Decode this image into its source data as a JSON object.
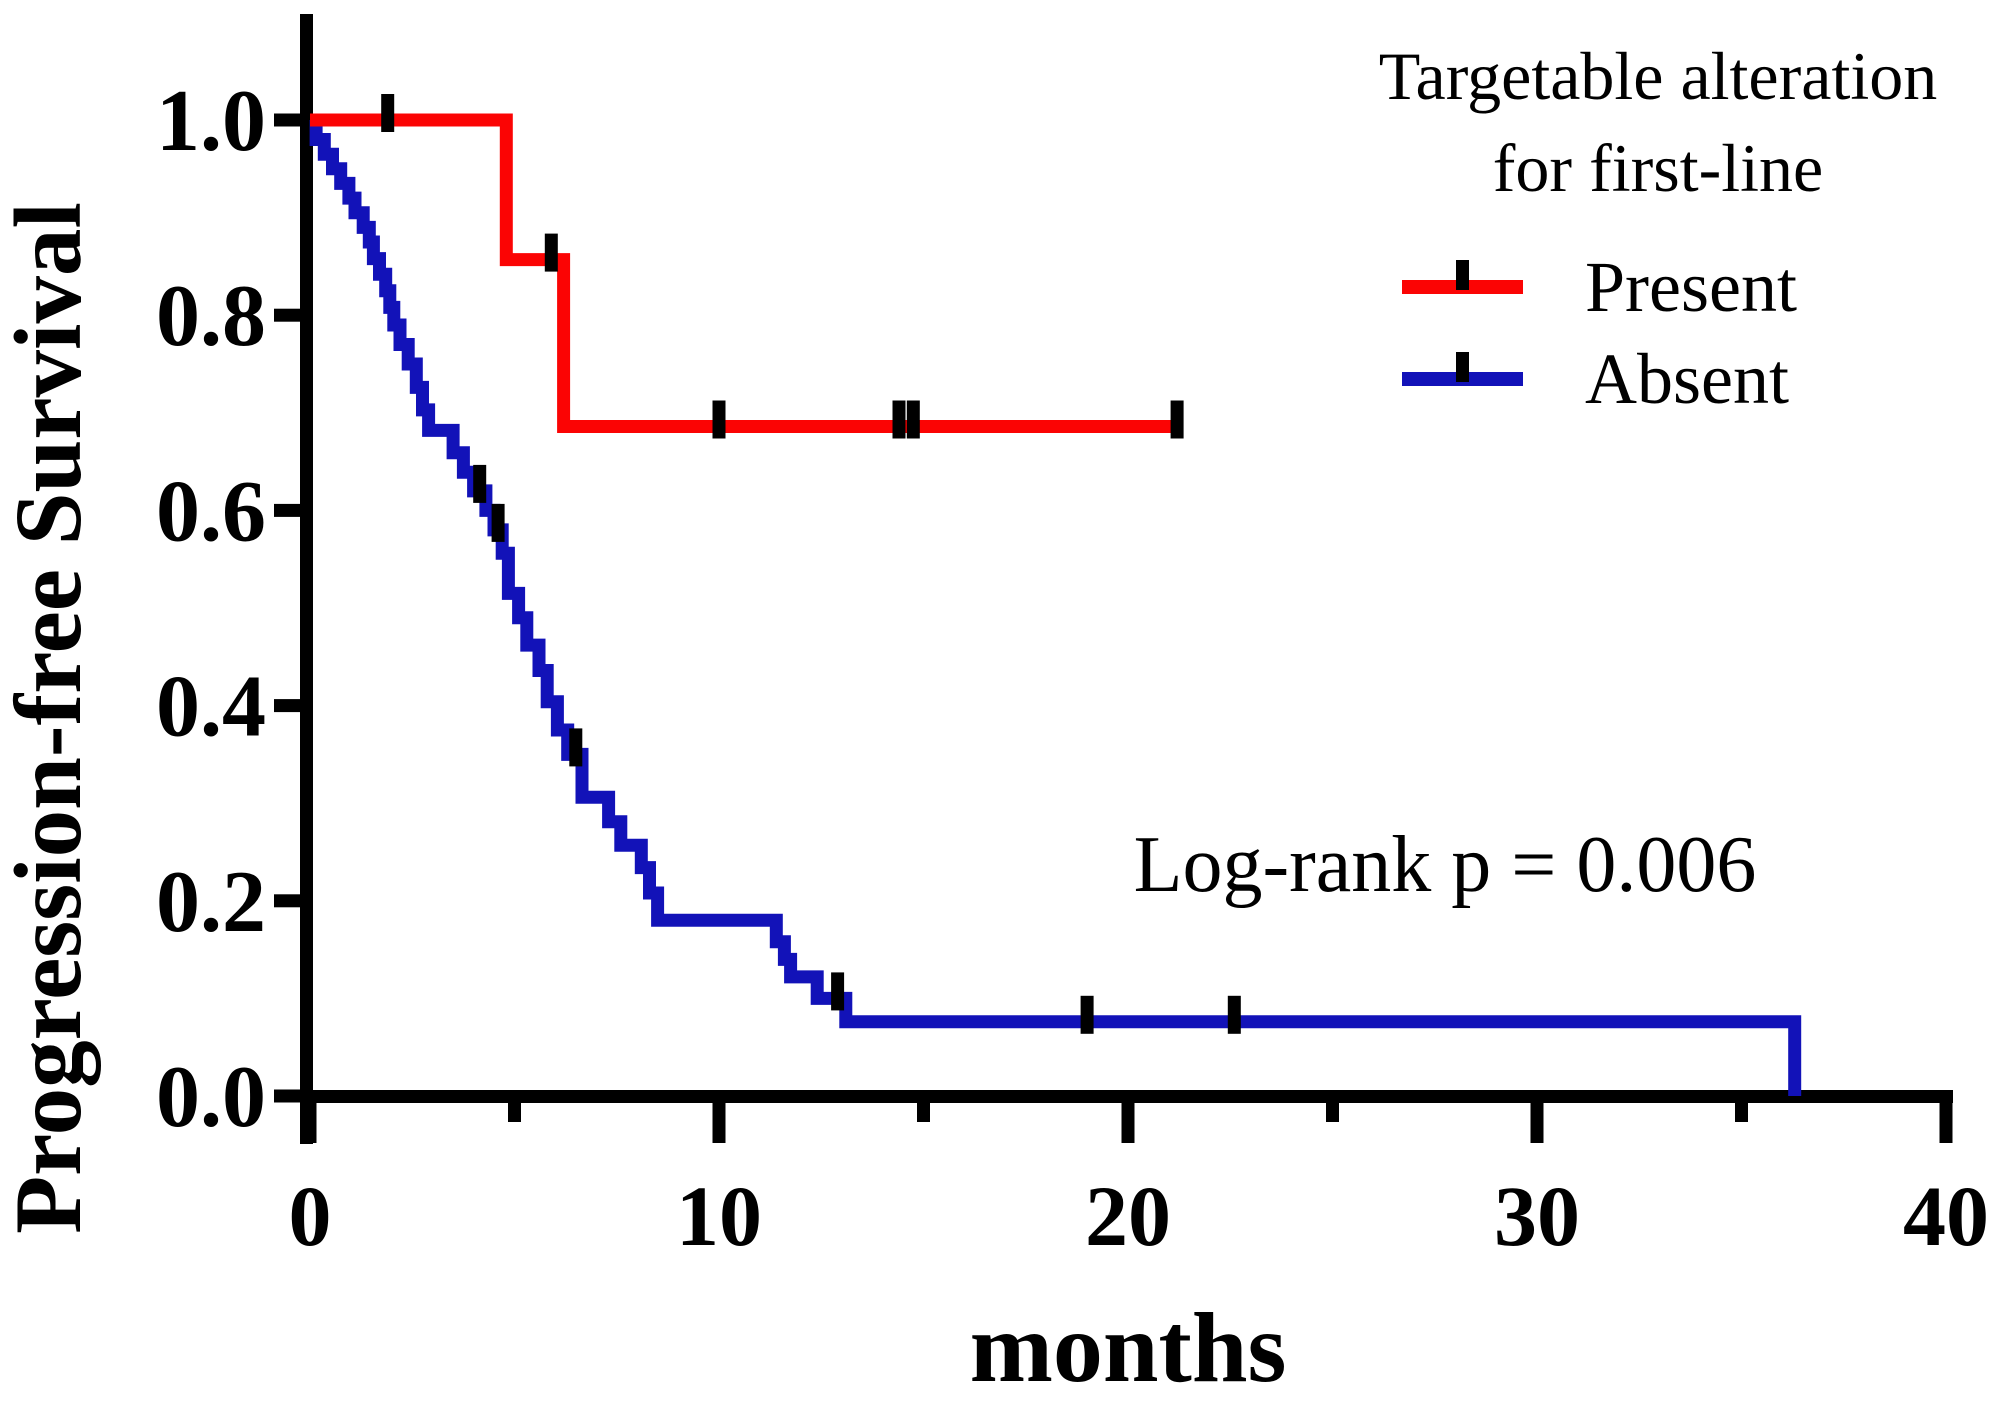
{
  "figure": {
    "background": "#ffffff"
  },
  "axes": {
    "x": {
      "title": "months",
      "range": [
        0,
        40
      ],
      "major_ticks": [
        0,
        10,
        20,
        30,
        40
      ],
      "major_tick_labels": [
        "0",
        "10",
        "20",
        "30",
        "40"
      ],
      "minor_ticks": [
        5,
        15,
        25,
        35
      ]
    },
    "y": {
      "title": "Progression-free Survival",
      "range": [
        0.0,
        1.0
      ],
      "tick_values": [
        1.0,
        0.8,
        0.6,
        0.4,
        0.2,
        0.0
      ],
      "tick_labels": [
        "1.0",
        "0.8",
        "0.6",
        "0.4",
        "0.2",
        "0.0"
      ]
    }
  },
  "annotation": {
    "text": "Log-rank p = 0.006"
  },
  "legend": {
    "title_line1": "Targetable alteration",
    "title_line2": "for first-line",
    "entries": [
      {
        "label": "Present",
        "color": "#fb0404"
      },
      {
        "label": "Absent",
        "color": "#1212b8"
      }
    ]
  },
  "colors": {
    "present": "#fb0404",
    "absent": "#1212b8",
    "axis": "#000000"
  },
  "chart_data": {
    "type": "line",
    "subtype": "kaplan-meier-step",
    "title": "",
    "xlabel": "months",
    "ylabel": "Progression-free Survival",
    "xlim": [
      0,
      40
    ],
    "ylim": [
      0.0,
      1.0
    ],
    "grid": false,
    "legend_position": "top-right",
    "annotation": "Log-rank p = 0.006",
    "series": [
      {
        "name": "Present",
        "color": "#fb0404",
        "steps": [
          [
            0,
            1.0
          ],
          [
            4.8,
            0.857
          ],
          [
            6.2,
            0.686
          ]
        ],
        "end_t": 21.2,
        "censor_marks": [
          [
            1.9,
            1.0
          ],
          [
            5.9,
            0.857
          ],
          [
            10.0,
            0.686
          ],
          [
            14.4,
            0.686
          ],
          [
            14.75,
            0.686
          ],
          [
            21.2,
            0.686
          ]
        ]
      },
      {
        "name": "Absent",
        "color": "#1212b8",
        "steps": [
          [
            0,
            1.0
          ],
          [
            0.15,
            0.98
          ],
          [
            0.35,
            0.965
          ],
          [
            0.55,
            0.95
          ],
          [
            0.75,
            0.935
          ],
          [
            0.95,
            0.92
          ],
          [
            1.1,
            0.905
          ],
          [
            1.3,
            0.89
          ],
          [
            1.45,
            0.875
          ],
          [
            1.55,
            0.858
          ],
          [
            1.7,
            0.842
          ],
          [
            1.85,
            0.825
          ],
          [
            1.95,
            0.808
          ],
          [
            2.05,
            0.79
          ],
          [
            2.2,
            0.77
          ],
          [
            2.4,
            0.75
          ],
          [
            2.6,
            0.726
          ],
          [
            2.75,
            0.703
          ],
          [
            2.9,
            0.682
          ],
          [
            3.5,
            0.659
          ],
          [
            3.75,
            0.639
          ],
          [
            4.0,
            0.62
          ],
          [
            4.3,
            0.6
          ],
          [
            4.5,
            0.58
          ],
          [
            4.7,
            0.556
          ],
          [
            4.85,
            0.515
          ],
          [
            5.1,
            0.49
          ],
          [
            5.3,
            0.462
          ],
          [
            5.6,
            0.436
          ],
          [
            5.8,
            0.404
          ],
          [
            6.05,
            0.375
          ],
          [
            6.3,
            0.35
          ],
          [
            6.65,
            0.306
          ],
          [
            7.3,
            0.281
          ],
          [
            7.6,
            0.257
          ],
          [
            8.1,
            0.234
          ],
          [
            8.3,
            0.208
          ],
          [
            8.5,
            0.18
          ],
          [
            11.4,
            0.158
          ],
          [
            11.6,
            0.14
          ],
          [
            11.75,
            0.122
          ],
          [
            12.4,
            0.1
          ],
          [
            13.1,
            0.076
          ],
          [
            36.3,
            0.0
          ]
        ],
        "end_t": 36.3,
        "censor_marks": [
          [
            4.15,
            0.62
          ],
          [
            4.6,
            0.58
          ],
          [
            6.5,
            0.35
          ],
          [
            12.9,
            0.1
          ],
          [
            19.0,
            0.076
          ],
          [
            22.6,
            0.076
          ]
        ]
      }
    ]
  }
}
